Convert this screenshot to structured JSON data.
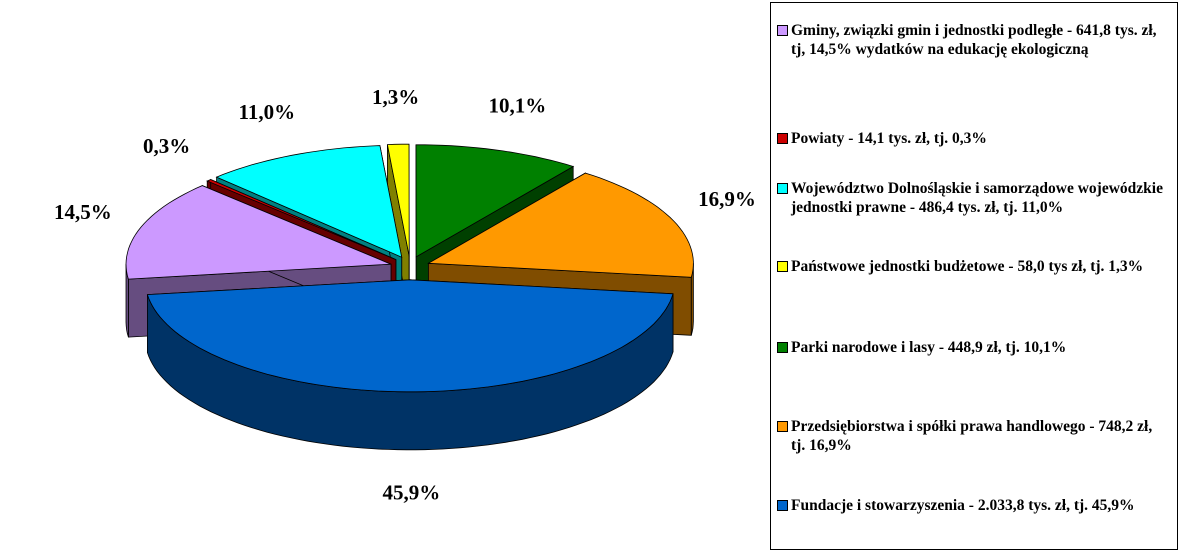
{
  "chart_data": {
    "type": "pie",
    "categories": [
      "Gminy, związki gmin i jednostki podległe - 641,8 tys. zł, tj, 14,5% wydatków na edukację ekologiczną",
      "Powiaty - 14,1 tys. zł, tj. 0,3%",
      "Województwo Dolnośląskie i samorządowe wojewódzkie jednostki prawne - 486,4 tys. zł, tj. 11,0%",
      "Państwowe jednostki budżetowe - 58,0 tys zł, tj. 1,3%",
      "Parki narodowe i lasy - 448,9 zł, tj. 10,1%",
      "Przedsiębiorstwa i spółki prawa handlowego - 748,2 zł, tj. 16,9%",
      "Fundacje i stowarzyszenia - 2.033,8 tys. zł, tj. 45,9%"
    ],
    "values": [
      14.5,
      0.3,
      11.0,
      1.3,
      10.1,
      16.9,
      45.9
    ],
    "value_labels": [
      "14,5%",
      "0,3%",
      "11,0%",
      "1,3%",
      "10,1%",
      "16,9%",
      "45,9%"
    ],
    "colors": [
      "#cc99ff",
      "#cc0000",
      "#00ffff",
      "#ffff00",
      "#008000",
      "#ff9900",
      "#0066cc"
    ],
    "legend": "right"
  }
}
